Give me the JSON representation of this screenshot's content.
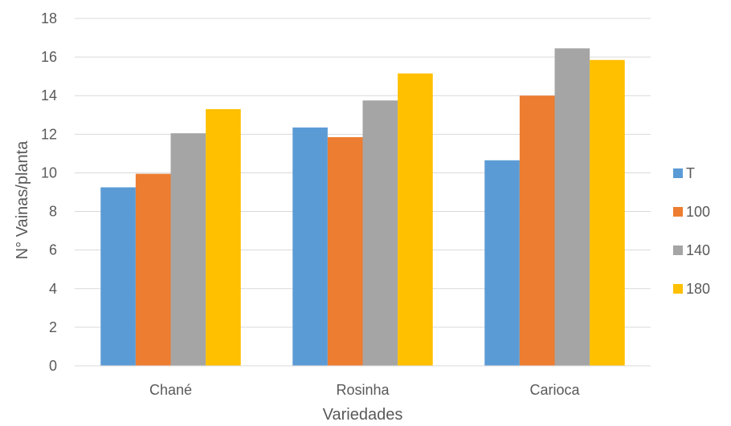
{
  "chart_data": {
    "type": "bar",
    "title": "",
    "xlabel": "Variedades",
    "ylabel": "N° Vainas/planta",
    "categories": [
      "Chané",
      "Rosinha",
      "Carioca"
    ],
    "series": [
      {
        "name": "T",
        "color": "#5b9bd5",
        "values": [
          9.25,
          12.35,
          10.65
        ]
      },
      {
        "name": "100",
        "color": "#ed7d31",
        "values": [
          9.95,
          11.85,
          14.0
        ]
      },
      {
        "name": "140",
        "color": "#a5a5a5",
        "values": [
          12.05,
          13.75,
          16.45
        ]
      },
      {
        "name": "180",
        "color": "#ffc000",
        "values": [
          13.3,
          15.15,
          15.85
        ]
      }
    ],
    "ylim": [
      0,
      18
    ],
    "yticks": [
      "0",
      "2",
      "4",
      "6",
      "8",
      "10",
      "12",
      "14",
      "16",
      "18"
    ],
    "grid": true,
    "legend_position": "right"
  }
}
